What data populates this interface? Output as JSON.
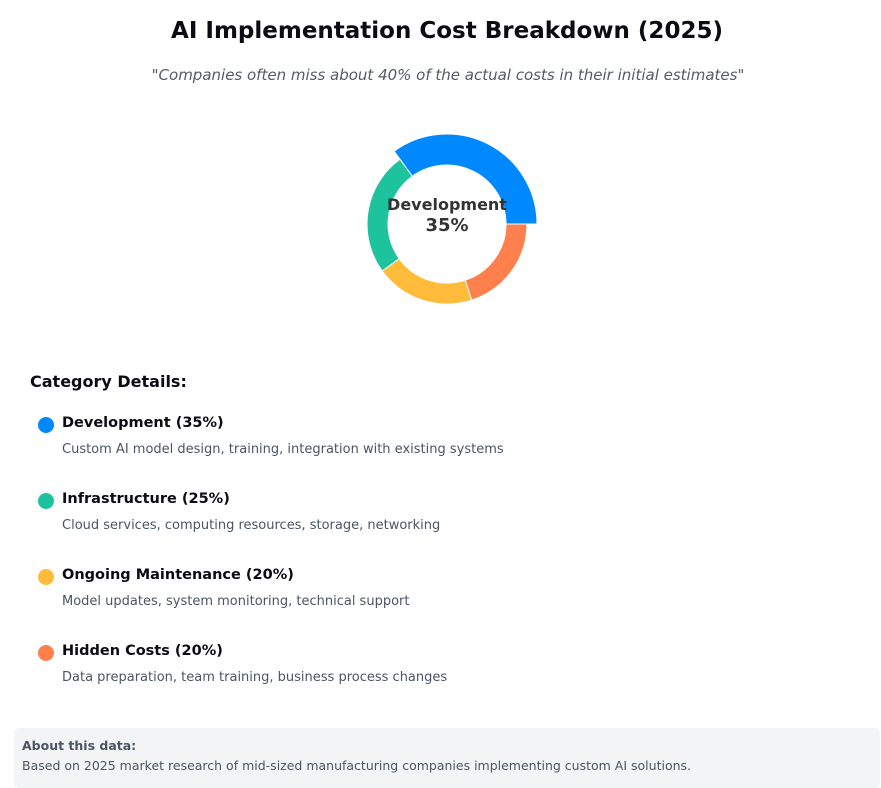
{
  "header": {
    "title": "AI Implementation Cost Breakdown (2025)",
    "subtitle": "\"Companies often miss about 40% of the actual costs in their initial estimates\""
  },
  "chart_data": {
    "type": "pie",
    "subtype": "donut",
    "title": "AI Implementation Cost Breakdown (2025)",
    "categories": [
      "Development",
      "Infrastructure",
      "Ongoing Maintenance",
      "Hidden Costs"
    ],
    "values": [
      35,
      25,
      20,
      20
    ],
    "unit": "%",
    "colors": [
      "#0088FE",
      "#1DC39C",
      "#FFBB3A",
      "#FF7F4D"
    ],
    "active_index": 0,
    "center_label": {
      "name": "Development",
      "value": "35%"
    }
  },
  "details": {
    "title": "Category Details:",
    "items": [
      {
        "name": "Development (35%)",
        "description": "Custom AI model design, training, integration with existing systems",
        "color": "#0088FE"
      },
      {
        "name": "Infrastructure (25%)",
        "description": "Cloud services, computing resources, storage, networking",
        "color": "#1DC39C"
      },
      {
        "name": "Ongoing Maintenance (20%)",
        "description": "Model updates, system monitoring, technical support",
        "color": "#FFBB3A"
      },
      {
        "name": "Hidden Costs (20%)",
        "description": "Data preparation, team training, business process changes",
        "color": "#FF7F4D"
      }
    ]
  },
  "about": {
    "title": "About this data:",
    "text": "Based on 2025 market research of mid-sized manufacturing companies implementing custom AI solutions."
  }
}
